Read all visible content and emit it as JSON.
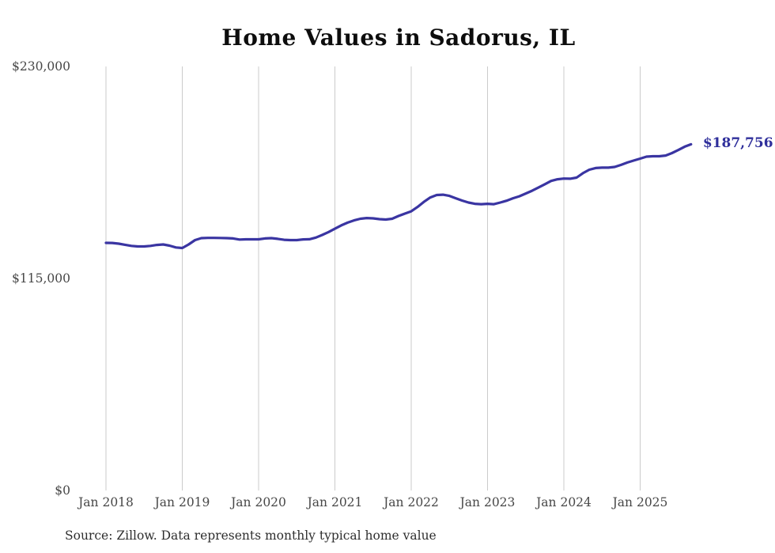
{
  "chart": {
    "title": "Home Values in Sadorus, IL",
    "source": "Source: Zillow. Data represents monthly typical home value",
    "end_label": "$187,756",
    "colors": {
      "line": "#3a35a2",
      "end_label": "#2f2f9b",
      "gridline": "#cbcbcb",
      "title": "#0d0d0d",
      "tick": "#474747",
      "source": "#2e2e2e"
    }
  },
  "chart_data": {
    "type": "line",
    "title": "Home Values in Sadorus, IL",
    "xlabel": "",
    "ylabel": "",
    "x_start": "Jan 2018",
    "x_end": "Sep 2025",
    "x_interval": "monthly",
    "x_tick_labels": [
      "Jan 2018",
      "Jan 2019",
      "Jan 2020",
      "Jan 2021",
      "Jan 2022",
      "Jan 2023",
      "Jan 2024",
      "Jan 2025"
    ],
    "y_tick_labels": [
      "$0",
      "$115,000",
      "$230,000"
    ],
    "y_tick_values": [
      0,
      115000,
      230000
    ],
    "ylim": [
      0,
      230000
    ],
    "grid": "vertical-only",
    "legend": "none",
    "end_value": 187756,
    "series": [
      {
        "name": "Monthly typical home value",
        "values": [
          134300,
          134250,
          133900,
          133300,
          132700,
          132400,
          132400,
          132700,
          133200,
          133450,
          132800,
          131800,
          131500,
          133450,
          135800,
          136900,
          137000,
          137000,
          136950,
          136900,
          136700,
          136100,
          136250,
          136250,
          136250,
          136700,
          136900,
          136500,
          136000,
          135800,
          135800,
          136200,
          136300,
          137200,
          138600,
          140200,
          142000,
          143800,
          145300,
          146500,
          147400,
          147800,
          147600,
          147200,
          146950,
          147400,
          148900,
          150200,
          151450,
          153800,
          156600,
          158950,
          160250,
          160450,
          159800,
          158500,
          157250,
          156200,
          155500,
          155300,
          155500,
          155300,
          156200,
          157200,
          158500,
          159600,
          161100,
          162600,
          164300,
          166100,
          167900,
          168800,
          169200,
          169100,
          169700,
          172100,
          174000,
          174900,
          175100,
          175100,
          175500,
          176600,
          177900,
          179000,
          180000,
          181100,
          181300,
          181300,
          181700,
          183000,
          184700,
          186500,
          187756
        ]
      }
    ]
  }
}
